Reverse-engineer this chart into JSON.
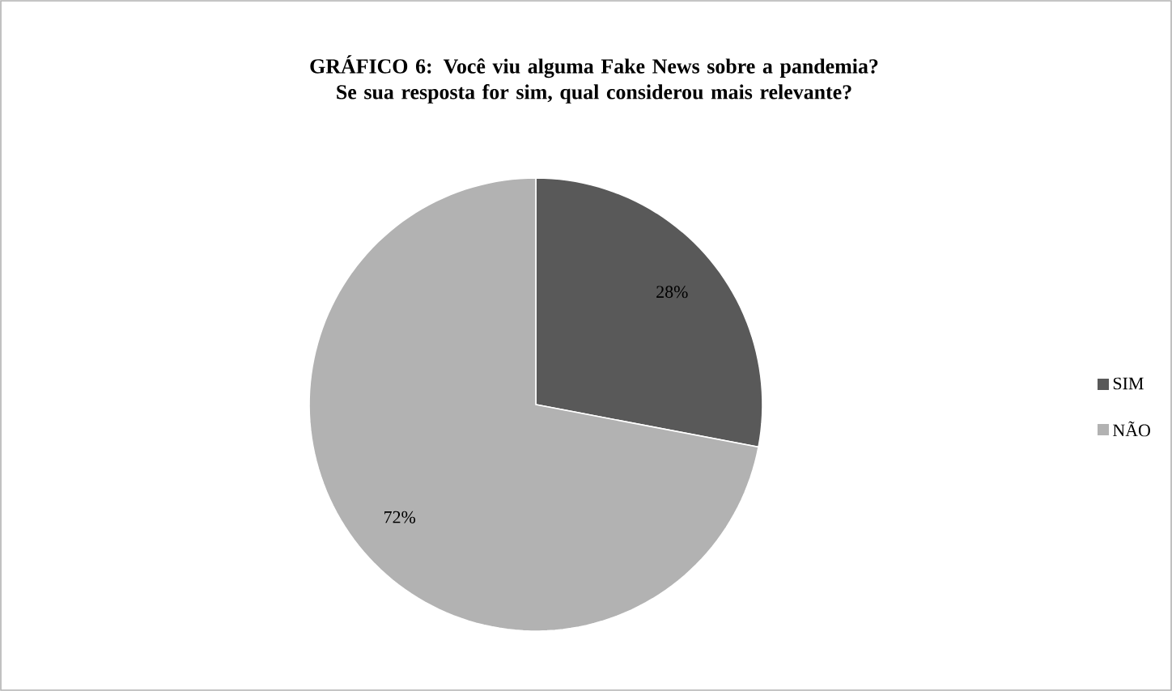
{
  "chart_data": {
    "type": "pie",
    "title": "GRÁFICO 6: Você viu alguma Fake News sobre a pandemia? Se sua resposta for sim, qual considerou mais relevante?",
    "categories": [
      "SIM",
      "NÃO"
    ],
    "values": [
      28,
      72
    ],
    "colors": [
      "#595959",
      "#b2b2b2"
    ],
    "value_labels": [
      "28%",
      "72%"
    ],
    "legend": "right"
  }
}
